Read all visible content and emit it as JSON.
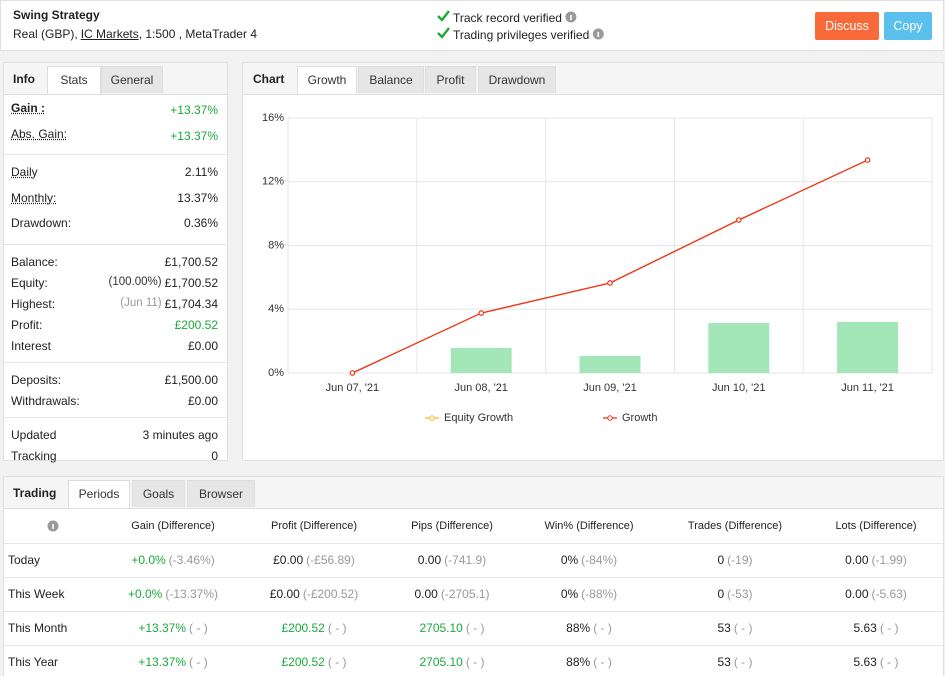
{
  "header": {
    "title": "Swing Strategy",
    "account_parts": [
      "Real (GBP), ",
      "IC Markets",
      " , 1:500 , MetaTrader 4"
    ],
    "verified": [
      "Track record verified",
      "Trading privileges verified"
    ],
    "buttons": [
      "Discuss",
      "Copy"
    ]
  },
  "stats_panel": {
    "heading": "Info",
    "tabs": [
      "Stats",
      "General"
    ],
    "active_tab": 0,
    "groups": [
      [
        {
          "label": "Gain :",
          "value": "+13.37%",
          "positive": true,
          "underline": true,
          "bold": true
        },
        {
          "label": "Abs. Gain:",
          "value": "+13.37%",
          "positive": true,
          "underline": true
        }
      ],
      [
        {
          "label": "Daily",
          "value": "2.11%",
          "underline": true
        },
        {
          "label": "Monthly:",
          "value": "13.37%",
          "underline": true
        },
        {
          "label": "Drawdown:",
          "value": "0.36%"
        }
      ],
      [
        {
          "label": "Balance:",
          "value": "£1,700.52"
        },
        {
          "label": "Equity:",
          "note": "(100.00%)",
          "value": "£1,700.52"
        },
        {
          "label": "Highest:",
          "note": "(Jun 11)",
          "value": "£1,704.34"
        },
        {
          "label": "Profit:",
          "value": "£200.52",
          "positive": true
        },
        {
          "label": "Interest",
          "value": "£0.00"
        }
      ],
      [
        {
          "label": "Deposits:",
          "value": "£1,500.00"
        },
        {
          "label": "Withdrawals:",
          "value": "£0.00"
        }
      ],
      [
        {
          "label": "Updated",
          "value": "3 minutes ago"
        },
        {
          "label": "Tracking",
          "value": "0"
        }
      ]
    ]
  },
  "chart_panel": {
    "heading": "Chart",
    "tabs": [
      "Growth",
      "Balance",
      "Profit",
      "Drawdown"
    ],
    "active_tab": 0
  },
  "chart_data": {
    "type": "line",
    "categories": [
      "Jun 07, '21",
      "Jun 08, '21",
      "Jun 09, '21",
      "Jun 10, '21",
      "Jun 11, '21"
    ],
    "series": [
      {
        "type": "bar",
        "color": "#a3e6b8",
        "values": [
          null,
          1.57,
          1.07,
          3.14,
          3.2
        ]
      },
      {
        "name": "Equity Growth",
        "color": "#f2c318",
        "values": [
          0,
          3.76,
          5.65,
          9.6,
          13.36
        ]
      },
      {
        "name": "Growth",
        "color": "#ee3322",
        "values": [
          0,
          3.76,
          5.65,
          9.6,
          13.36
        ]
      }
    ],
    "ylim": [
      0,
      16
    ],
    "yticks": [
      {
        "value": 0,
        "label": "0%"
      },
      {
        "value": 4,
        "label": "4%"
      },
      {
        "value": 8,
        "label": "8%"
      },
      {
        "value": 12,
        "label": "12%"
      },
      {
        "value": 16,
        "label": "16%"
      }
    ],
    "grid": true,
    "legend": "bottom"
  },
  "periods_panel": {
    "heading": "Trading",
    "tabs": [
      "Periods",
      "Goals",
      "Browser"
    ],
    "active_tab": 0,
    "columns": [
      "Gain (Difference)",
      "Profit (Difference)",
      "Pips (Difference)",
      "Win% (Difference)",
      "Trades (Difference)",
      "Lots (Difference)"
    ],
    "rows": [
      {
        "label": "Today",
        "cells": [
          {
            "value": "+0.0%",
            "diff": "(-3.46%)",
            "positive": true
          },
          {
            "value": "£0.00",
            "diff": "(-£56.89)"
          },
          {
            "value": "0.00",
            "diff": "(-741.9)"
          },
          {
            "value": "0%",
            "diff": "(-84%)"
          },
          {
            "value": "0",
            "diff": "(-19)"
          },
          {
            "value": "0.00",
            "diff": "(-1.99)"
          }
        ]
      },
      {
        "label": "This Week",
        "cells": [
          {
            "value": "+0.0%",
            "diff": "(-13.37%)",
            "positive": true
          },
          {
            "value": "£0.00",
            "diff": "(-£200.52)"
          },
          {
            "value": "0.00",
            "diff": "(-2705.1)"
          },
          {
            "value": "0%",
            "diff": "(-88%)"
          },
          {
            "value": "0",
            "diff": "(-53)"
          },
          {
            "value": "0.00",
            "diff": "(-5.63)"
          }
        ]
      },
      {
        "label": "This Month",
        "cells": [
          {
            "value": "+13.37%",
            "diff": "( - )",
            "positive": true
          },
          {
            "value": "£200.52",
            "diff": "( - )",
            "positive": true
          },
          {
            "value": "2705.10",
            "diff": "( - )",
            "positive": true
          },
          {
            "value": "88%",
            "diff": "( - )"
          },
          {
            "value": "53",
            "diff": "( - )"
          },
          {
            "value": "5.63",
            "diff": "( - )"
          }
        ]
      },
      {
        "label": "This Year",
        "cells": [
          {
            "value": "+13.37%",
            "diff": "( - )",
            "positive": true
          },
          {
            "value": "£200.52",
            "diff": "( - )",
            "positive": true
          },
          {
            "value": "2705.10",
            "diff": "( - )",
            "positive": true
          },
          {
            "value": "88%",
            "diff": "( - )"
          },
          {
            "value": "53",
            "diff": "( - )"
          },
          {
            "value": "5.63",
            "diff": "( - )"
          }
        ]
      }
    ]
  }
}
